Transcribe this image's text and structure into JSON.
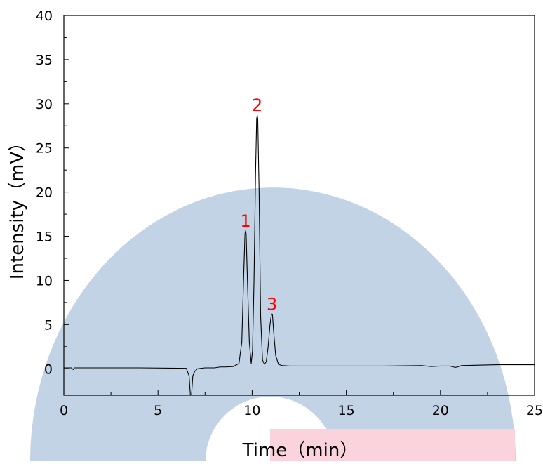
{
  "chart_data": {
    "type": "line",
    "title": "",
    "xlabel": "Time（min）",
    "ylabel": "Intensity（mV）",
    "xlim": [
      0,
      25
    ],
    "ylim": [
      -3,
      40
    ],
    "x_ticks": [
      0,
      5,
      10,
      15,
      20,
      25
    ],
    "y_ticks": [
      0,
      5,
      10,
      15,
      20,
      25,
      30,
      35,
      40
    ],
    "x_tick_labels": [
      "0",
      "5",
      "10",
      "15",
      "20",
      "25"
    ],
    "y_tick_labels": [
      "0",
      "5",
      "10",
      "15",
      "20",
      "25",
      "30",
      "35",
      "40"
    ],
    "grid": false,
    "series": [
      {
        "color": "#000000",
        "x": [
          0.0,
          0.4,
          0.5,
          0.55,
          0.6,
          2.0,
          4.0,
          6.5,
          6.65,
          6.72,
          6.78,
          6.85,
          6.95,
          7.1,
          7.5,
          8.0,
          8.3,
          8.6,
          9.0,
          9.3,
          9.45,
          9.55,
          9.62,
          9.65,
          9.68,
          9.75,
          9.85,
          9.95,
          10.02,
          10.1,
          10.18,
          10.24,
          10.27,
          10.3,
          10.37,
          10.45,
          10.55,
          10.65,
          10.75,
          10.85,
          10.95,
          11.02,
          11.05,
          11.08,
          11.15,
          11.25,
          11.4,
          11.6,
          12.0,
          14.0,
          15.0,
          17.0,
          19.0,
          19.5,
          20.0,
          20.5,
          20.8,
          20.9,
          21.1,
          22.0,
          23.0,
          25.0
        ],
        "y": [
          0.1,
          0.1,
          -0.1,
          0.1,
          0.1,
          0.1,
          0.1,
          0.05,
          -0.8,
          -3.0,
          -3.0,
          -0.8,
          -0.3,
          0.0,
          0.1,
          0.1,
          0.2,
          0.2,
          0.25,
          0.6,
          3.0,
          10.5,
          15.3,
          15.6,
          15.3,
          10.0,
          3.0,
          0.6,
          2.0,
          10.0,
          22.0,
          28.3,
          28.7,
          28.3,
          20.0,
          6.0,
          1.0,
          0.5,
          0.8,
          2.5,
          5.0,
          6.1,
          6.2,
          6.1,
          4.0,
          1.5,
          0.5,
          0.35,
          0.3,
          0.3,
          0.3,
          0.3,
          0.35,
          0.25,
          0.3,
          0.3,
          0.15,
          0.2,
          0.35,
          0.4,
          0.45,
          0.45
        ]
      }
    ],
    "annotations": [
      {
        "text": "1",
        "x": 9.65,
        "y": 15.6,
        "color": "#ff0000"
      },
      {
        "text": "2",
        "x": 10.27,
        "y": 28.7,
        "color": "#ff0000"
      },
      {
        "text": "3",
        "x": 11.05,
        "y": 6.2,
        "color": "#ff0000"
      }
    ],
    "watermark_colors": {
      "ring": "#c3d3e6",
      "bar": "#fbd3dc"
    }
  }
}
